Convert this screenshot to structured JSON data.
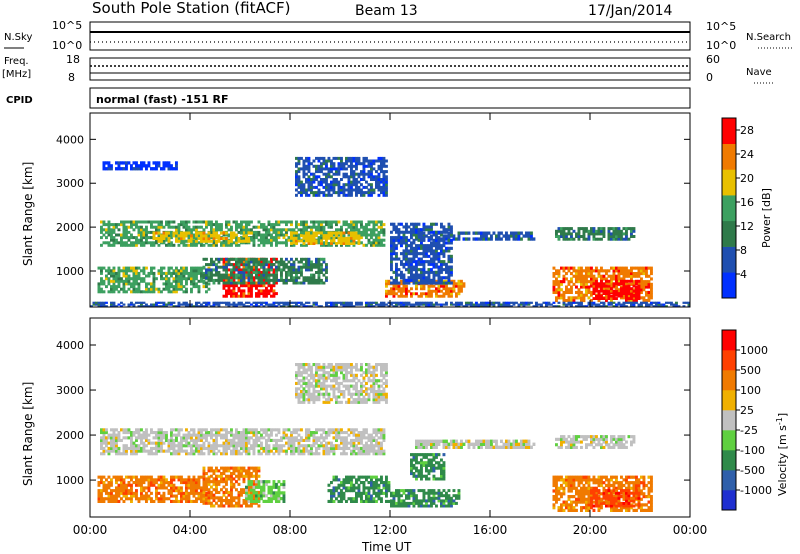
{
  "header": {
    "station": "South Pole Station (fitACF)",
    "beam": "Beam 13",
    "date": "17/Jan/2014"
  },
  "top_panels": {
    "nsky_label": "N.Sky",
    "nsky_ticks": [
      "10^5",
      "10^0"
    ],
    "nsearch_label": "N.Search",
    "nsearch_ticks": [
      "10^5",
      "10^0"
    ],
    "freq_label": "Freq.",
    "freq_unit": "[MHz]",
    "freq_ticks": [
      "18",
      "8"
    ],
    "nave_label": "Nave",
    "nave_ticks": [
      "60",
      "0"
    ],
    "cpid_label": "CPID",
    "cpid_value": "normal (fast) -151 RF"
  },
  "chart_data": [
    {
      "type": "heatmap",
      "name": "power-panel",
      "ylabel": "Slant Range [km]",
      "ylim": [
        180,
        4600
      ],
      "yticks": [
        1000,
        2000,
        3000,
        4000
      ],
      "xlim": [
        0,
        24
      ],
      "xticks": [
        "00:00",
        "04:00",
        "08:00",
        "12:00",
        "16:00",
        "20:00",
        "00:00"
      ],
      "colorbar": {
        "label": "Power [dB]",
        "ticks": [
          "28",
          "24",
          "20",
          "16",
          "12",
          "8",
          "4"
        ],
        "range": [
          0,
          30
        ],
        "colors": [
          "#0030ff",
          "#1f4fb0",
          "#2f7a4a",
          "#3ca060",
          "#e8c000",
          "#f07a00",
          "#ff0000"
        ]
      },
      "regions": [
        {
          "t0": 0.4,
          "t1": 11.8,
          "r0": 1560,
          "r1": 2150,
          "level": 3
        },
        {
          "t0": 2.5,
          "t1": 6.5,
          "r0": 1650,
          "r1": 1900,
          "level": 4
        },
        {
          "t0": 8.0,
          "t1": 10.8,
          "r0": 1600,
          "r1": 1900,
          "level": 4
        },
        {
          "t0": 18.6,
          "t1": 21.8,
          "r0": 1700,
          "r1": 2000,
          "level": 2
        },
        {
          "t0": 13.0,
          "t1": 17.8,
          "r0": 1700,
          "r1": 1900,
          "level": 1
        },
        {
          "t0": 0.3,
          "t1": 4.8,
          "r0": 500,
          "r1": 1100,
          "level": 3
        },
        {
          "t0": 5.3,
          "t1": 7.5,
          "r0": 400,
          "r1": 1300,
          "level": 6
        },
        {
          "t0": 4.5,
          "t1": 9.5,
          "r0": 700,
          "r1": 1300,
          "level": 2
        },
        {
          "t0": 11.8,
          "t1": 15.0,
          "r0": 400,
          "r1": 800,
          "level": 5
        },
        {
          "t0": 12.0,
          "t1": 14.5,
          "r0": 700,
          "r1": 2100,
          "level": 1
        },
        {
          "t0": 18.5,
          "t1": 22.5,
          "r0": 300,
          "r1": 1100,
          "level": 5
        },
        {
          "t0": 20.0,
          "t1": 22.0,
          "r0": 350,
          "r1": 800,
          "level": 6
        },
        {
          "t0": 8.2,
          "t1": 11.9,
          "r0": 2700,
          "r1": 3600,
          "level": 1
        },
        {
          "t0": 0.5,
          "t1": 3.5,
          "r0": 3300,
          "r1": 3500,
          "level": 0
        },
        {
          "t0": 0.0,
          "t1": 24.0,
          "r0": 180,
          "r1": 300,
          "level": 1
        }
      ]
    },
    {
      "type": "heatmap",
      "name": "velocity-panel",
      "ylabel": "Slant Range [km]",
      "ylim": [
        180,
        4600
      ],
      "yticks": [
        1000,
        2000,
        3000,
        4000
      ],
      "xlim": [
        0,
        24
      ],
      "xticks": [
        "00:00",
        "04:00",
        "08:00",
        "12:00",
        "16:00",
        "20:00",
        "00:00"
      ],
      "xlabel": "Time UT",
      "colorbar": {
        "label": "Velocity [m s",
        "label_sup": "-1",
        "label_end": "]",
        "ticks": [
          "1000",
          "500",
          "100",
          "25",
          "-25",
          "-100",
          "-500",
          "-1000"
        ],
        "colors": [
          "#1f2fd0",
          "#2f5faa",
          "#2f8a4a",
          "#5fd040",
          "#c0c0c0",
          "#f0b000",
          "#f07a00",
          "#ff4000",
          "#ff0000"
        ]
      },
      "regions": [
        {
          "t0": 0.4,
          "t1": 11.8,
          "r0": 1560,
          "r1": 2150,
          "level": 4
        },
        {
          "t0": 18.6,
          "t1": 21.8,
          "r0": 1700,
          "r1": 2000,
          "level": 4
        },
        {
          "t0": 13.0,
          "t1": 17.8,
          "r0": 1700,
          "r1": 1900,
          "level": 4
        },
        {
          "t0": 0.3,
          "t1": 4.8,
          "r0": 500,
          "r1": 1100,
          "level": 6
        },
        {
          "t0": 4.5,
          "t1": 6.8,
          "r0": 400,
          "r1": 1300,
          "level": 6
        },
        {
          "t0": 6.2,
          "t1": 7.8,
          "r0": 500,
          "r1": 1000,
          "level": 3
        },
        {
          "t0": 9.5,
          "t1": 12.0,
          "r0": 500,
          "r1": 1100,
          "level": 2
        },
        {
          "t0": 12.0,
          "t1": 14.8,
          "r0": 400,
          "r1": 800,
          "level": 2
        },
        {
          "t0": 12.8,
          "t1": 14.2,
          "r0": 1000,
          "r1": 1600,
          "level": 2
        },
        {
          "t0": 18.5,
          "t1": 22.5,
          "r0": 300,
          "r1": 1100,
          "level": 6
        },
        {
          "t0": 20.0,
          "t1": 22.0,
          "r0": 400,
          "r1": 800,
          "level": 7
        },
        {
          "t0": 8.2,
          "t1": 11.9,
          "r0": 2700,
          "r1": 3600,
          "level": 4
        }
      ]
    }
  ]
}
